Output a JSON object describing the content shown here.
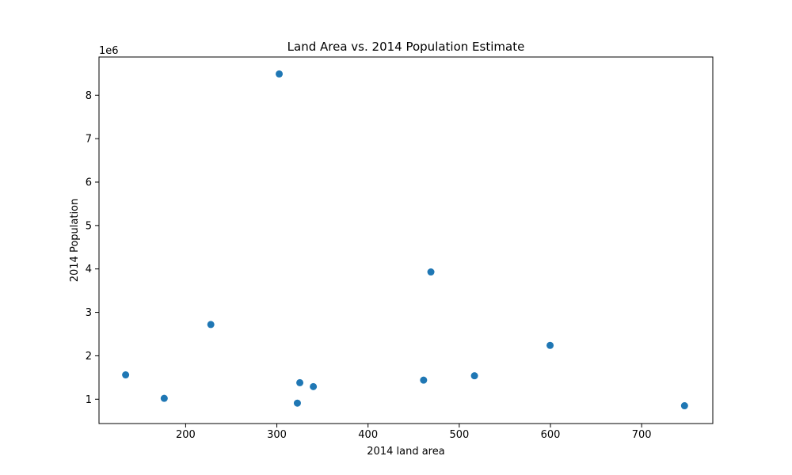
{
  "chart_data": {
    "type": "scatter",
    "title": "Land Area vs. 2014 Population Estimate",
    "xlabel": "2014 land area",
    "ylabel": "2014 Population",
    "y_offset_label": "1e6",
    "xlim": [
      105,
      778
    ],
    "ylim": [
      440000,
      8880000
    ],
    "x_ticks": [
      200,
      300,
      400,
      500,
      600,
      700
    ],
    "y_ticks": [
      1000000,
      2000000,
      3000000,
      4000000,
      5000000,
      6000000,
      7000000,
      8000000
    ],
    "y_tick_labels": [
      "1",
      "2",
      "3",
      "4",
      "5",
      "6",
      "7",
      "8"
    ],
    "grid": false,
    "marker_color": "#1f77b4",
    "points": [
      {
        "x": 302.6,
        "y": 8490000
      },
      {
        "x": 468.9,
        "y": 3930000
      },
      {
        "x": 227.6,
        "y": 2720000
      },
      {
        "x": 599.6,
        "y": 2240000
      },
      {
        "x": 134.2,
        "y": 1560000
      },
      {
        "x": 516.7,
        "y": 1540000
      },
      {
        "x": 460.9,
        "y": 1440000
      },
      {
        "x": 325.2,
        "y": 1380000
      },
      {
        "x": 340.0,
        "y": 1290000
      },
      {
        "x": 176.5,
        "y": 1020000
      },
      {
        "x": 322.5,
        "y": 910000
      },
      {
        "x": 747.0,
        "y": 850000
      }
    ]
  }
}
